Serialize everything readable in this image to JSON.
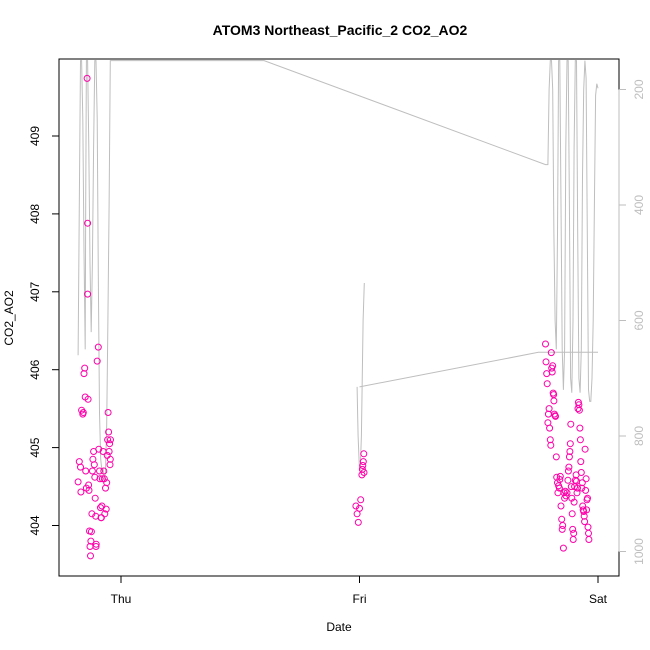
{
  "chart_data": {
    "type": "scatter",
    "title": "ATOM3 Northeast_Pacific_2 CO2_AO2",
    "xlabel": "Date",
    "ylabel": "CO2_AO2",
    "x_ticks": [
      {
        "label": "Thu",
        "value": 0.0
      },
      {
        "label": "Fri",
        "value": 1.0
      },
      {
        "label": "Sat",
        "value": 2.0
      }
    ],
    "xlim": [
      -0.2,
      2.1
    ],
    "ylim": [
      403.57,
      409.98
    ],
    "y_ticks": [
      404,
      405,
      406,
      407,
      408,
      409
    ],
    "y2_ticks": [
      200,
      400,
      600,
      800,
      1000
    ],
    "y2lim": [
      1005,
      150
    ],
    "point_color": "#ff00aa",
    "line_color": "#bebebe",
    "series": [
      {
        "values": [
          [
            -0.18,
            404.56
          ],
          [
            -0.175,
            404.82
          ],
          [
            -0.17,
            404.75
          ],
          [
            -0.168,
            404.43
          ],
          [
            -0.165,
            405.48
          ],
          [
            -0.16,
            405.43
          ],
          [
            -0.158,
            405.45
          ],
          [
            -0.155,
            405.95
          ],
          [
            -0.152,
            406.02
          ],
          [
            -0.15,
            405.65
          ],
          [
            -0.148,
            404.7
          ],
          [
            -0.145,
            404.48
          ],
          [
            -0.142,
            409.74
          ],
          [
            -0.14,
            407.88
          ],
          [
            -0.14,
            406.97
          ],
          [
            -0.138,
            405.62
          ],
          [
            -0.136,
            404.52
          ],
          [
            -0.134,
            404.45
          ],
          [
            -0.132,
            403.93
          ],
          [
            -0.13,
            403.73
          ],
          [
            -0.128,
            403.61
          ],
          [
            -0.126,
            403.8
          ],
          [
            -0.124,
            403.92
          ],
          [
            -0.122,
            404.15
          ],
          [
            -0.12,
            404.7
          ],
          [
            -0.118,
            404.85
          ],
          [
            -0.115,
            404.95
          ],
          [
            -0.112,
            404.78
          ],
          [
            -0.11,
            404.62
          ],
          [
            -0.108,
            404.35
          ],
          [
            -0.106,
            404.12
          ],
          [
            -0.105,
            403.73
          ],
          [
            -0.104,
            403.76
          ],
          [
            -0.1,
            406.11
          ],
          [
            -0.095,
            406.29
          ],
          [
            -0.093,
            404.98
          ],
          [
            -0.09,
            404.7
          ],
          [
            -0.088,
            404.6
          ],
          [
            -0.086,
            404.23
          ],
          [
            -0.084,
            404.1
          ],
          [
            -0.082,
            404.1
          ],
          [
            -0.08,
            404.25
          ],
          [
            -0.078,
            404.6
          ],
          [
            -0.075,
            404.95
          ],
          [
            -0.072,
            404.7
          ],
          [
            -0.07,
            404.6
          ],
          [
            -0.068,
            404.15
          ],
          [
            -0.065,
            404.48
          ],
          [
            -0.062,
            404.21
          ],
          [
            -0.06,
            404.55
          ],
          [
            -0.058,
            404.9
          ],
          [
            -0.056,
            405.1
          ],
          [
            -0.054,
            405.45
          ],
          [
            -0.052,
            405.2
          ],
          [
            -0.05,
            404.95
          ],
          [
            -0.048,
            405.05
          ],
          [
            -0.046,
            404.78
          ],
          [
            -0.045,
            404.85
          ],
          [
            -0.044,
            405.1
          ],
          [
            0.985,
            404.25
          ],
          [
            0.99,
            404.15
          ],
          [
            0.995,
            404.04
          ],
          [
            1.0,
            404.22
          ],
          [
            1.005,
            404.33
          ],
          [
            1.01,
            404.65
          ],
          [
            1.012,
            404.72
          ],
          [
            1.014,
            404.77
          ],
          [
            1.016,
            404.82
          ],
          [
            1.018,
            404.92
          ],
          [
            1.019,
            404.68
          ],
          [
            1.78,
            406.33
          ],
          [
            1.782,
            406.1
          ],
          [
            1.785,
            405.95
          ],
          [
            1.787,
            405.82
          ],
          [
            1.79,
            405.32
          ],
          [
            1.792,
            405.43
          ],
          [
            1.795,
            405.5
          ],
          [
            1.797,
            405.25
          ],
          [
            1.8,
            405.1
          ],
          [
            1.802,
            405.03
          ],
          [
            1.804,
            406.22
          ],
          [
            1.806,
            406.02
          ],
          [
            1.808,
            405.97
          ],
          [
            1.81,
            406.05
          ],
          [
            1.812,
            405.7
          ],
          [
            1.814,
            405.68
          ],
          [
            1.815,
            405.6
          ],
          [
            1.817,
            405.43
          ],
          [
            1.82,
            405.41
          ],
          [
            1.822,
            405.4
          ],
          [
            1.825,
            404.88
          ],
          [
            1.827,
            404.62
          ],
          [
            1.83,
            404.55
          ],
          [
            1.832,
            404.42
          ],
          [
            1.835,
            404.51
          ],
          [
            1.838,
            404.48
          ],
          [
            1.84,
            404.59
          ],
          [
            1.842,
            404.63
          ],
          [
            1.845,
            404.25
          ],
          [
            1.848,
            404.08
          ],
          [
            1.85,
            403.95
          ],
          [
            1.852,
            404.0
          ],
          [
            1.855,
            403.71
          ],
          [
            1.858,
            404.42
          ],
          [
            1.86,
            404.35
          ],
          [
            1.863,
            404.44
          ],
          [
            1.866,
            404.38
          ],
          [
            1.87,
            404.42
          ],
          [
            1.874,
            404.58
          ],
          [
            1.876,
            404.7
          ],
          [
            1.878,
            404.75
          ],
          [
            1.88,
            404.88
          ],
          [
            1.882,
            404.95
          ],
          [
            1.884,
            405.05
          ],
          [
            1.886,
            405.3
          ],
          [
            1.888,
            404.5
          ],
          [
            1.89,
            404.35
          ],
          [
            1.892,
            404.15
          ],
          [
            1.894,
            403.95
          ],
          [
            1.896,
            403.82
          ],
          [
            1.898,
            403.9
          ],
          [
            1.9,
            404.3
          ],
          [
            1.902,
            404.5
          ],
          [
            1.905,
            404.58
          ],
          [
            1.908,
            404.65
          ],
          [
            1.91,
            404.57
          ],
          [
            1.912,
            404.42
          ],
          [
            1.914,
            404.48
          ],
          [
            1.916,
            405.5
          ],
          [
            1.918,
            405.58
          ],
          [
            1.92,
            405.55
          ],
          [
            1.922,
            405.48
          ],
          [
            1.924,
            405.25
          ],
          [
            1.926,
            405.1
          ],
          [
            1.928,
            404.82
          ],
          [
            1.93,
            404.68
          ],
          [
            1.932,
            404.48
          ],
          [
            1.934,
            404.55
          ],
          [
            1.936,
            404.25
          ],
          [
            1.938,
            404.2
          ],
          [
            1.94,
            404.18
          ],
          [
            1.942,
            404.12
          ],
          [
            1.944,
            404.05
          ],
          [
            1.946,
            404.98
          ],
          [
            1.948,
            404.45
          ],
          [
            1.95,
            404.6
          ],
          [
            1.952,
            404.2
          ],
          [
            1.954,
            404.33
          ],
          [
            1.956,
            404.35
          ],
          [
            1.958,
            403.98
          ],
          [
            1.96,
            403.9
          ],
          [
            1.962,
            403.82
          ]
        ]
      },
      {
        "axis": "right",
        "segments": [
          [
            [
              -0.18,
              660
            ],
            [
              -0.175,
              400
            ],
            [
              -0.17,
              150
            ],
            [
              -0.165,
              150
            ],
            [
              -0.16,
              250
            ],
            [
              -0.155,
              480
            ],
            [
              -0.15,
              650
            ],
            [
              -0.148,
              400
            ],
            [
              -0.145,
              150
            ],
            [
              -0.14,
              150
            ],
            [
              -0.135,
              300
            ],
            [
              -0.13,
              500
            ],
            [
              -0.125,
              620
            ],
            [
              -0.12,
              500
            ],
            [
              -0.115,
              300
            ],
            [
              -0.11,
              150
            ],
            [
              -0.105,
              150
            ],
            [
              -0.1,
              250
            ],
            [
              -0.095,
              520
            ],
            [
              -0.09,
              760
            ],
            [
              -0.085,
              840
            ],
            [
              -0.08,
              860
            ],
            [
              -0.075,
              855
            ],
            [
              -0.07,
              880
            ],
            [
              -0.065,
              860
            ],
            [
              -0.06,
              780
            ],
            [
              -0.055,
              600
            ],
            [
              -0.05,
              400
            ],
            [
              -0.045,
              150
            ],
            [
              0.6,
              150
            ],
            [
              1.78,
              330
            ],
            [
              1.79,
              330
            ],
            [
              1.795,
              200
            ],
            [
              1.8,
              150
            ],
            [
              1.805,
              150
            ],
            [
              1.81,
              200
            ],
            [
              1.815,
              450
            ],
            [
              1.82,
              600
            ],
            [
              1.825,
              650
            ],
            [
              1.83,
              450
            ],
            [
              1.835,
              150
            ],
            [
              1.84,
              150
            ],
            [
              1.845,
              400
            ],
            [
              1.85,
              650
            ],
            [
              1.855,
              720
            ],
            [
              1.86,
              650
            ],
            [
              1.865,
              300
            ],
            [
              1.87,
              150
            ],
            [
              1.875,
              150
            ],
            [
              1.88,
              400
            ],
            [
              1.885,
              700
            ],
            [
              1.89,
              725
            ],
            [
              1.895,
              600
            ],
            [
              1.9,
              300
            ],
            [
              1.905,
              150
            ],
            [
              1.91,
              150
            ],
            [
              1.915,
              450
            ],
            [
              1.92,
              700
            ],
            [
              1.925,
              725
            ],
            [
              1.93,
              650
            ],
            [
              1.935,
              350
            ],
            [
              1.94,
              200
            ],
            [
              1.945,
              150
            ],
            [
              1.95,
              180
            ],
            [
              1.955,
              450
            ],
            [
              1.96,
              720
            ],
            [
              1.965,
              740
            ],
            [
              1.97,
              740
            ],
            [
              1.975,
              700
            ],
            [
              1.98,
              600
            ],
            [
              1.985,
              400
            ],
            [
              1.99,
              210
            ],
            [
              1.995,
              190
            ],
            [
              2.0,
              198
            ]
          ],
          [
            [
              0.99,
              715
            ],
            [
              0.992,
              760
            ],
            [
              0.994,
              800
            ],
            [
              0.997,
              830
            ],
            [
              1.0,
              860
            ],
            [
              1.003,
              860
            ],
            [
              1.008,
              800
            ],
            [
              1.015,
              600
            ],
            [
              1.02,
              535
            ]
          ],
          [
            [
              1.0,
              715
            ],
            [
              1.75,
              655
            ],
            [
              2.0,
              655
            ]
          ]
        ]
      }
    ]
  }
}
